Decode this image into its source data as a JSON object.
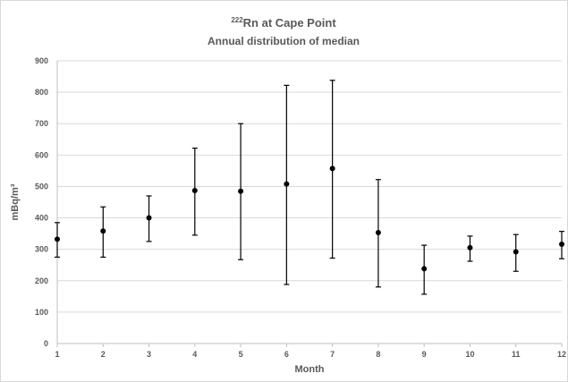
{
  "chart_data": {
    "type": "scatter",
    "title_sup": "222",
    "title_main": "Rn at Cape Point",
    "subtitle": "Annual distribution of median",
    "xlabel": "Month",
    "ylabel": "mBq/m³",
    "ylim": [
      0,
      900
    ],
    "yticks": [
      0,
      100,
      200,
      300,
      400,
      500,
      600,
      700,
      800,
      900
    ],
    "xlim": [
      1,
      12
    ],
    "grid": true,
    "legend": "none",
    "marker_color": "#000000",
    "points": [
      {
        "x": 1,
        "y": 332,
        "low": 275,
        "high": 385
      },
      {
        "x": 2,
        "y": 358,
        "low": 275,
        "high": 435
      },
      {
        "x": 3,
        "y": 400,
        "low": 325,
        "high": 470
      },
      {
        "x": 4,
        "y": 487,
        "low": 345,
        "high": 622
      },
      {
        "x": 5,
        "y": 485,
        "low": 267,
        "high": 700
      },
      {
        "x": 6,
        "y": 508,
        "low": 188,
        "high": 822
      },
      {
        "x": 7,
        "y": 557,
        "low": 272,
        "high": 838
      },
      {
        "x": 8,
        "y": 353,
        "low": 180,
        "high": 522
      },
      {
        "x": 9,
        "y": 238,
        "low": 157,
        "high": 313
      },
      {
        "x": 10,
        "y": 305,
        "low": 262,
        "high": 342
      },
      {
        "x": 11,
        "y": 292,
        "low": 230,
        "high": 347
      },
      {
        "x": 12,
        "y": 316,
        "low": 270,
        "high": 357
      }
    ]
  }
}
